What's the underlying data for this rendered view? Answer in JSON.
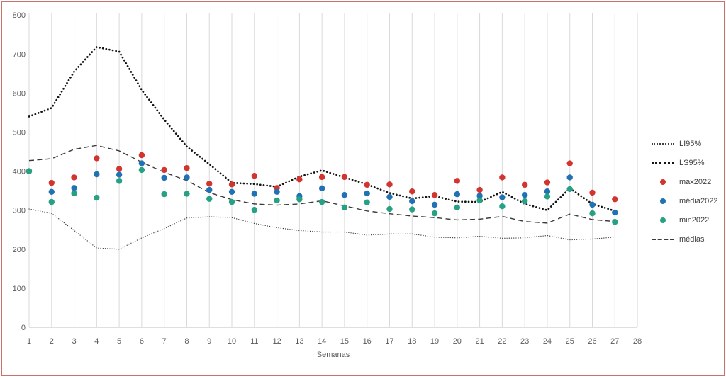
{
  "frame": {
    "border_color": "#c9716d",
    "background": "#ffffff"
  },
  "chart_data": {
    "type": "line",
    "title": "",
    "xlabel": "Semanas",
    "ylabel": "",
    "ylim": [
      0,
      800
    ],
    "y_ticks": [
      0,
      100,
      200,
      300,
      400,
      500,
      600,
      700,
      800
    ],
    "x_axis_ticks": [
      1,
      2,
      3,
      4,
      5,
      6,
      7,
      8,
      9,
      10,
      11,
      12,
      13,
      14,
      15,
      16,
      17,
      18,
      19,
      20,
      21,
      22,
      23,
      24,
      25,
      26,
      27,
      28
    ],
    "x": [
      1,
      2,
      3,
      4,
      5,
      6,
      7,
      8,
      9,
      10,
      11,
      12,
      13,
      14,
      15,
      16,
      17,
      18,
      19,
      20,
      21,
      22,
      23,
      24,
      25,
      26,
      27
    ],
    "grid": "vertical-only",
    "legend_position": "right",
    "colors": {
      "gridline": "#d9d9d9",
      "axis_line": "#bfbfbf",
      "tick_text": "#595959",
      "legend_text": "#404040"
    },
    "series": [
      {
        "name": "LI95%",
        "style": "dotted-thin",
        "color": "#404040",
        "values": [
          303,
          292,
          248,
          203,
          200,
          229,
          253,
          280,
          283,
          281,
          266,
          255,
          248,
          244,
          244,
          236,
          239,
          239,
          231,
          229,
          233,
          228,
          229,
          235,
          224,
          226,
          231
        ]
      },
      {
        "name": "LS95%",
        "style": "dotted-thick",
        "color": "#141414",
        "values": [
          540,
          562,
          655,
          718,
          706,
          608,
          532,
          463,
          418,
          370,
          367,
          360,
          386,
          402,
          384,
          366,
          344,
          330,
          336,
          322,
          321,
          347,
          316,
          300,
          356,
          316,
          298
        ]
      },
      {
        "name": "max2022",
        "style": "scatter",
        "color": "#d23530",
        "values": [
          400,
          370,
          384,
          433,
          406,
          441,
          403,
          408,
          368,
          366,
          388,
          357,
          379,
          385,
          385,
          365,
          366,
          348,
          339,
          375,
          352,
          384,
          365,
          371,
          420,
          345,
          328
        ]
      },
      {
        "name": "média2022",
        "style": "scatter",
        "color": "#2172b4",
        "values": [
          400,
          347,
          357,
          392,
          391,
          420,
          383,
          384,
          352,
          347,
          342,
          347,
          336,
          356,
          339,
          343,
          334,
          323,
          314,
          341,
          337,
          333,
          339,
          348,
          384,
          314,
          294
        ]
      },
      {
        "name": "min2022",
        "style": "scatter",
        "color": "#27a184",
        "values": [
          400,
          321,
          343,
          332,
          375,
          403,
          341,
          342,
          329,
          321,
          301,
          325,
          328,
          321,
          307,
          320,
          303,
          302,
          292,
          307,
          325,
          310,
          323,
          335,
          354,
          292,
          270
        ]
      },
      {
        "name": "médias",
        "style": "dashed",
        "color": "#3a3a3a",
        "values": [
          427,
          432,
          456,
          466,
          452,
          423,
          397,
          376,
          345,
          327,
          316,
          313,
          316,
          324,
          311,
          298,
          291,
          285,
          281,
          275,
          277,
          284,
          271,
          267,
          290,
          276,
          271
        ]
      }
    ]
  }
}
